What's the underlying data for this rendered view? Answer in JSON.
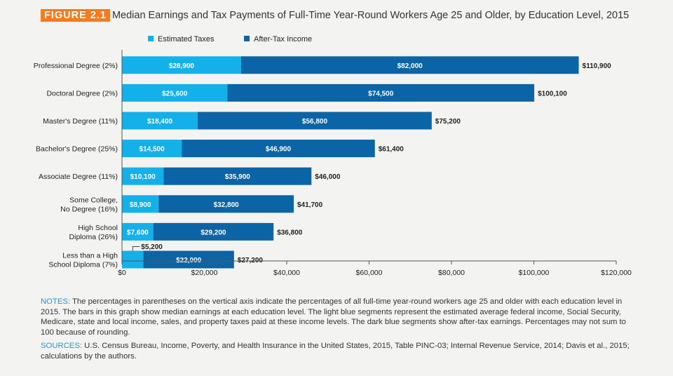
{
  "figure": {
    "label": "FIGURE 2.1",
    "title": "Median Earnings and Tax Payments of Full-Time Year-Round Workers Age 25 and Older, by Education Level, 2015"
  },
  "colors": {
    "taxes": "#13b0ea",
    "income": "#0a64a6",
    "axis": "#555555",
    "text": "#222222"
  },
  "chart_data": {
    "type": "bar",
    "orientation": "horizontal",
    "stacked": true,
    "categories": [
      "Professional Degree (2%)",
      "Doctoral Degree (2%)",
      "Master's Degree (11%)",
      "Bachelor's Degree (25%)",
      "Associate Degree (11%)",
      "Some College,\nNo Degree (16%)",
      "High School\nDiploma (26%)",
      "Less than a High\nSchool Diploma (7%)"
    ],
    "series": [
      {
        "name": "Estimated Taxes",
        "values": [
          28900,
          25600,
          18400,
          14500,
          10100,
          8900,
          7600,
          5200
        ],
        "labels": [
          "$28,900",
          "$25,600",
          "$18,400",
          "$14,500",
          "$10,100",
          "$8,900",
          "$7,600",
          "$5,200"
        ]
      },
      {
        "name": "After-Tax Income",
        "values": [
          82000,
          74500,
          56800,
          46900,
          35900,
          32800,
          29200,
          22000
        ],
        "labels": [
          "$82,000",
          "$74,500",
          "$56,800",
          "$46,900",
          "$35,900",
          "$32,800",
          "$29,200",
          "$22,000"
        ]
      }
    ],
    "totals": [
      110900,
      100100,
      75200,
      61400,
      46000,
      41700,
      36800,
      27200
    ],
    "total_labels": [
      "$110,900",
      "$100,100",
      "$75,200",
      "$61,400",
      "$46,000",
      "$41,700",
      "$36,800",
      "$27,200"
    ],
    "xlim": [
      0,
      120000
    ],
    "xticks": [
      0,
      20000,
      40000,
      60000,
      80000,
      100000,
      120000
    ],
    "xtick_labels": [
      "$0",
      "$20,000",
      "$40,000",
      "$60,000",
      "$80,000",
      "$100,000",
      "$120,000"
    ],
    "legend_position": "top",
    "grid": false
  },
  "notes": {
    "label": "NOTES:",
    "text": " The percentages in parentheses on the vertical axis indicate the percentages of all full-time year-round workers age 25 and older with each education level in 2015. The bars in this graph show median earnings at each education level. The light blue segments represent the estimated average federal income, Social Security, Medicare, state and local income, sales, and property taxes paid at these income levels. The dark blue segments show after-tax earnings. Percentages may not sum to 100 because of rounding."
  },
  "sources": {
    "label": "SOURCES:",
    "text": " U.S. Census Bureau, Income, Poverty, and Health Insurance in the United States, 2015, Table PINC-03; Internal Revenue Service, 2014; Davis et al., 2015; calculations by the authors."
  }
}
